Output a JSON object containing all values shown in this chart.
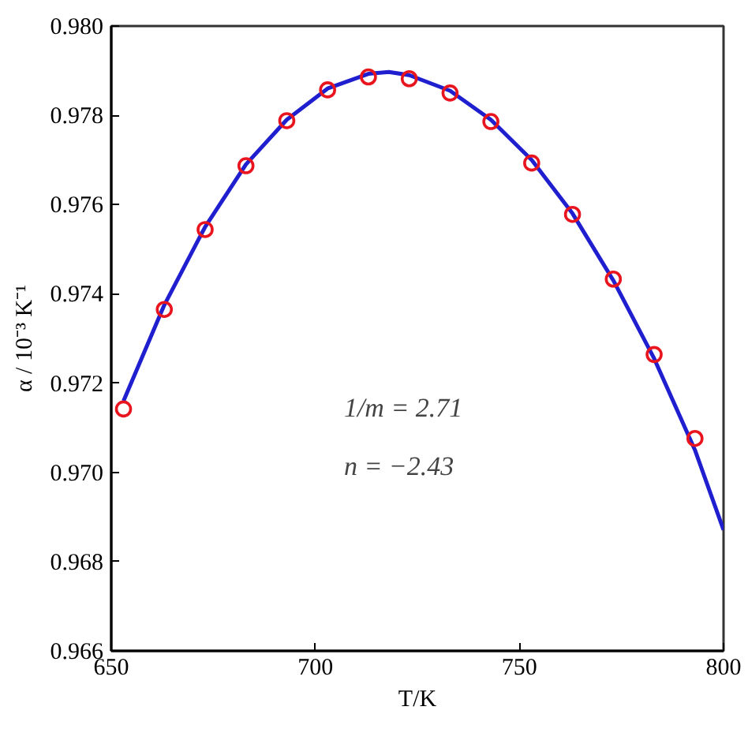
{
  "chart_data": {
    "type": "scatter",
    "xlabel": "T/K",
    "ylabel": "α / 10⁻³ K⁻¹",
    "xlim": [
      650,
      800
    ],
    "xticks": [
      650,
      700,
      750,
      800
    ],
    "ylim": [
      0.966,
      0.98
    ],
    "yticks": [
      {
        "value": 0.966,
        "label": "0.966"
      },
      {
        "value": 0.968,
        "label": "0.968"
      },
      {
        "value": 0.97,
        "label": "0.970"
      },
      {
        "value": 0.972,
        "label": "0.972"
      },
      {
        "value": 0.974,
        "label": "0.974"
      },
      {
        "value": 0.976,
        "label": "0.976"
      },
      {
        "value": 0.978,
        "label": "0.978"
      },
      {
        "value": 0.98,
        "label": "0.980"
      }
    ],
    "grid": false,
    "series": [
      {
        "type": "line",
        "color": "#1f1fd0",
        "line_style": "solid",
        "x": [
          653,
          663,
          673,
          683,
          693,
          703,
          713,
          718,
          723,
          733,
          743,
          753,
          763,
          773,
          783,
          793,
          800
        ],
        "values": [
          0.9716,
          0.97375,
          0.9755,
          0.9769,
          0.9779,
          0.9786,
          0.97893,
          0.97897,
          0.9789,
          0.97855,
          0.9779,
          0.977,
          0.9758,
          0.9743,
          0.97255,
          0.9705,
          0.96871
        ]
      },
      {
        "color": "#e8141e",
        "marker": "circle",
        "x": [
          653,
          663,
          673,
          683,
          693,
          703,
          713,
          723,
          733,
          743,
          753,
          763,
          773,
          783,
          793
        ],
        "values": [
          0.97142,
          0.97365,
          0.97544,
          0.97687,
          0.97788,
          0.97857,
          0.97886,
          0.97882,
          0.9785,
          0.97786,
          0.97693,
          0.97578,
          0.97433,
          0.97264,
          0.97076
        ]
      }
    ],
    "annotations": [
      {
        "text": "1/m = 2.71"
      },
      {
        "text": "n = −2.43"
      }
    ]
  }
}
